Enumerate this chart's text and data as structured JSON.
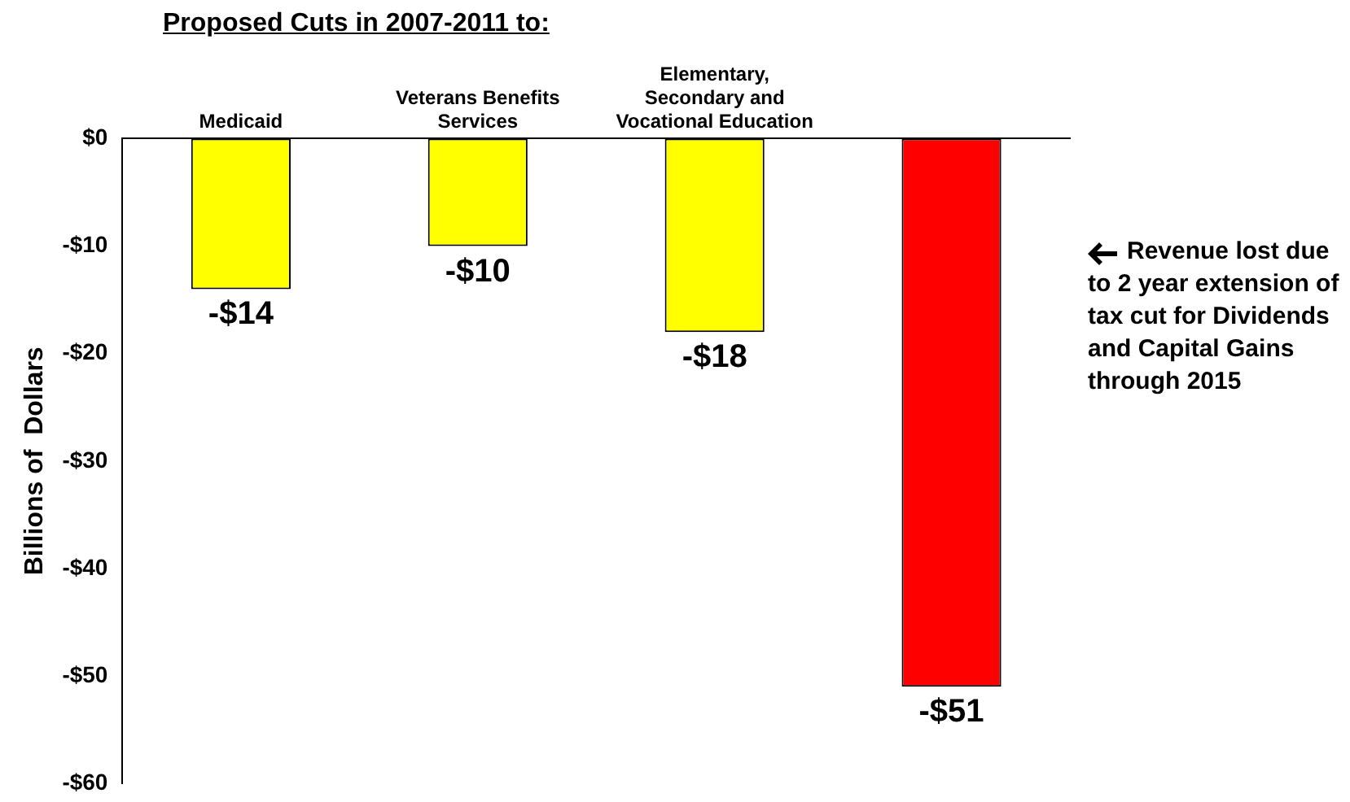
{
  "chart_data": {
    "type": "bar",
    "title": "Proposed Cuts in 2007-2011 to:",
    "ylabel": "Billions of  Dollars",
    "categories": [
      "Medicaid",
      "Veterans Benefits Services",
      "Elementary, Secondary and Vocational Education",
      null
    ],
    "values": [
      -14,
      -10,
      -18,
      -51
    ],
    "colors": [
      "#ffff00",
      "#ffff00",
      "#ffff00",
      "#ff0000"
    ],
    "value_labels": [
      "-$14",
      "-$10",
      "-$18",
      "-$51"
    ],
    "ylim": [
      -60,
      0
    ],
    "yticks": [
      {
        "value": 0,
        "label": "$0"
      },
      {
        "value": -10,
        "label": "-$10"
      },
      {
        "value": -20,
        "label": "-$20"
      },
      {
        "value": -30,
        "label": "-$30"
      },
      {
        "value": -40,
        "label": "-$40"
      },
      {
        "value": -50,
        "label": "-$50"
      },
      {
        "value": -60,
        "label": "-$60"
      }
    ],
    "annotations": [
      "Revenue lost due to 2 year extension of tax cut for Dividends and Capital Gains through 2015"
    ],
    "grid": false,
    "legend": false
  }
}
